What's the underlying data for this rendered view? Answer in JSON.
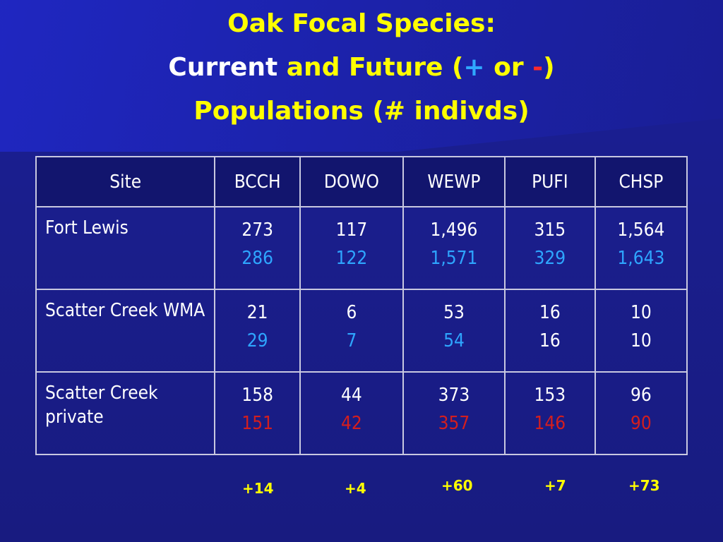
{
  "title": {
    "line1": "Oak Focal Species:",
    "line2_current": "Current",
    "line2_mid": " and Future (",
    "line2_plus": "+",
    "line2_or": " or ",
    "line2_minus": "-",
    "line2_close": ")",
    "line3": "Populations (# indivds)"
  },
  "colors": {
    "background": "#1a1e8c",
    "title": "#ffff00",
    "increase": "#2ea6ff",
    "decrease": "#d41e1e",
    "table_header_bg": "#12156e"
  },
  "table": {
    "headers": [
      "Site",
      "BCCH",
      "DOWO",
      "WEWP",
      "PUFI",
      "CHSP"
    ],
    "rows": [
      {
        "site": "Fort Lewis",
        "current": [
          "273",
          "117",
          "1,496",
          "315",
          "1,564"
        ],
        "future": [
          "286",
          "122",
          "1,571",
          "329",
          "1,643"
        ],
        "future_trend": [
          "up",
          "up",
          "up",
          "up",
          "up"
        ]
      },
      {
        "site": "Scatter Creek WMA",
        "current": [
          "21",
          "6",
          "53",
          "16",
          "10"
        ],
        "future": [
          "29",
          "7",
          "54",
          "16",
          "10"
        ],
        "future_trend": [
          "up",
          "up",
          "up",
          "same",
          "same"
        ]
      },
      {
        "site": "Scatter Creek private",
        "current": [
          "158",
          "44",
          "373",
          "153",
          "96"
        ],
        "future": [
          "151",
          "42",
          "357",
          "146",
          "90"
        ],
        "future_trend": [
          "down",
          "down",
          "down",
          "down",
          "down"
        ]
      }
    ]
  },
  "net_changes": [
    "+14",
    "+4",
    "+60",
    "+7",
    "+73"
  ]
}
